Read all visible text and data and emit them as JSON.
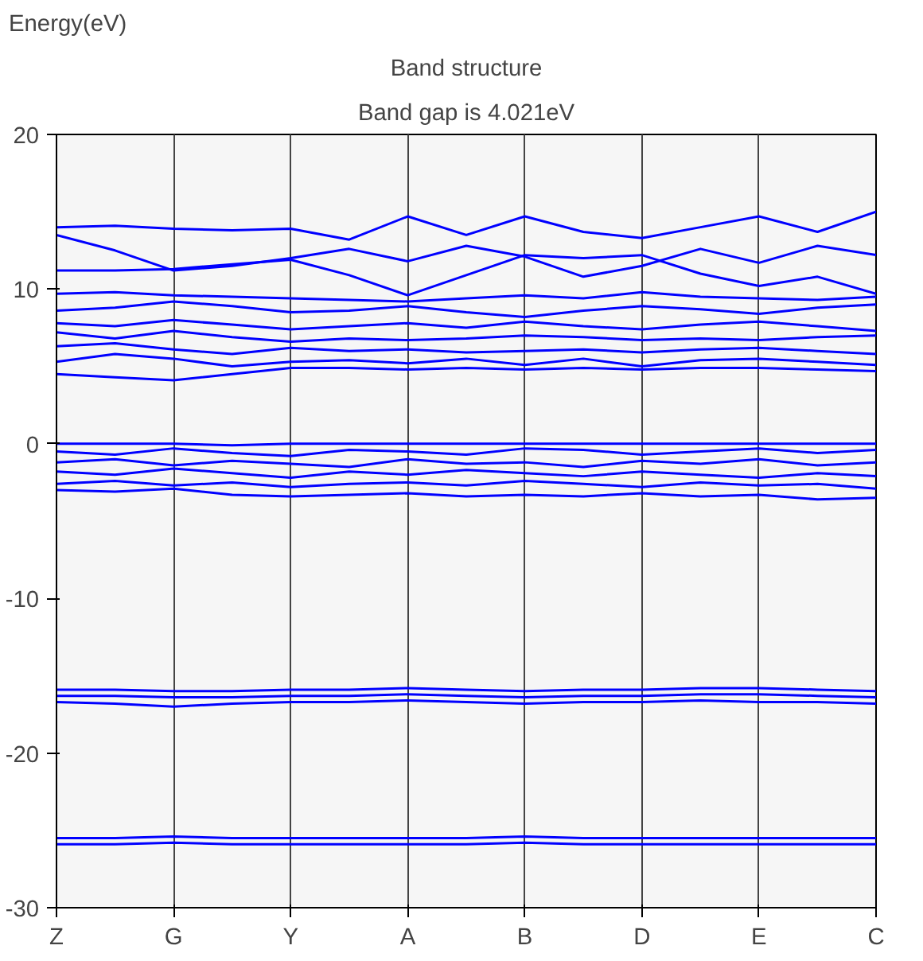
{
  "chart_data": {
    "type": "line",
    "title": "Band structure",
    "subtitle": "Band gap is 4.021eV",
    "ylabel": "Energy(eV)",
    "categories": [
      "Z",
      null,
      "G",
      null,
      "Y",
      null,
      "A",
      null,
      "B",
      null,
      "D",
      null,
      "E",
      null,
      "C"
    ],
    "ylim": [
      -30,
      20
    ],
    "yticks": [
      -30,
      -20,
      -10,
      0,
      10,
      20
    ],
    "grid": "x",
    "line_style": "solid",
    "series": [
      {
        "color": "#0000ff",
        "values": [
          14.0,
          14.1,
          13.9,
          13.8,
          13.9,
          13.2,
          14.7,
          13.5,
          14.7,
          13.7,
          13.3,
          14.0,
          14.7,
          13.7,
          15.0
        ]
      },
      {
        "color": "#0000ff",
        "values": [
          13.5,
          12.5,
          11.2,
          11.5,
          12.0,
          12.6,
          11.8,
          12.8,
          12.1,
          10.8,
          11.5,
          12.6,
          11.7,
          12.8,
          12.2
        ]
      },
      {
        "color": "#0000ff",
        "values": [
          11.2,
          11.2,
          11.3,
          11.6,
          11.9,
          10.9,
          9.6,
          10.9,
          12.2,
          12.0,
          12.2,
          11.0,
          10.2,
          10.8,
          9.7
        ]
      },
      {
        "color": "#0000ff",
        "values": [
          9.7,
          9.8,
          9.6,
          9.5,
          9.4,
          9.3,
          9.2,
          9.4,
          9.6,
          9.4,
          9.8,
          9.5,
          9.4,
          9.3,
          9.5
        ]
      },
      {
        "color": "#0000ff",
        "values": [
          8.6,
          8.8,
          9.2,
          8.9,
          8.5,
          8.6,
          8.9,
          8.5,
          8.2,
          8.6,
          8.9,
          8.7,
          8.4,
          8.8,
          9.0
        ]
      },
      {
        "color": "#0000ff",
        "values": [
          7.8,
          7.6,
          8.0,
          7.7,
          7.4,
          7.6,
          7.8,
          7.5,
          7.9,
          7.6,
          7.4,
          7.7,
          7.9,
          7.6,
          7.3
        ]
      },
      {
        "color": "#0000ff",
        "values": [
          7.2,
          6.8,
          7.3,
          6.9,
          6.6,
          6.8,
          6.7,
          6.8,
          7.0,
          6.9,
          6.7,
          6.8,
          6.7,
          6.9,
          7.0
        ]
      },
      {
        "color": "#0000ff",
        "values": [
          6.3,
          6.5,
          6.1,
          5.8,
          6.2,
          6.0,
          6.1,
          5.9,
          6.0,
          6.1,
          5.9,
          6.1,
          6.2,
          6.0,
          5.8
        ]
      },
      {
        "color": "#0000ff",
        "values": [
          5.3,
          5.8,
          5.5,
          5.0,
          5.3,
          5.4,
          5.2,
          5.5,
          5.1,
          5.5,
          5.0,
          5.4,
          5.5,
          5.3,
          5.1
        ]
      },
      {
        "color": "#0000ff",
        "values": [
          4.5,
          4.3,
          4.1,
          4.5,
          4.9,
          4.9,
          4.8,
          4.9,
          4.8,
          4.9,
          4.8,
          4.9,
          4.9,
          4.8,
          4.7
        ]
      },
      {
        "color": "#0000ff",
        "values": [
          0.0,
          0.0,
          0.0,
          -0.1,
          0.0,
          0.0,
          0.0,
          0.0,
          0.0,
          0.0,
          0.0,
          0.0,
          0.0,
          0.0,
          0.0
        ]
      },
      {
        "color": "#0000ff",
        "values": [
          -0.5,
          -0.7,
          -0.3,
          -0.6,
          -0.8,
          -0.4,
          -0.5,
          -0.7,
          -0.3,
          -0.4,
          -0.7,
          -0.5,
          -0.3,
          -0.6,
          -0.4
        ]
      },
      {
        "color": "#0000ff",
        "values": [
          -1.2,
          -1.0,
          -1.4,
          -1.1,
          -1.3,
          -1.5,
          -1.0,
          -1.3,
          -1.2,
          -1.5,
          -1.1,
          -1.3,
          -1.0,
          -1.4,
          -1.2
        ]
      },
      {
        "color": "#0000ff",
        "values": [
          -1.8,
          -2.0,
          -1.6,
          -1.9,
          -2.2,
          -1.8,
          -2.0,
          -1.7,
          -1.9,
          -2.1,
          -1.8,
          -2.0,
          -2.2,
          -1.9,
          -2.1
        ]
      },
      {
        "color": "#0000ff",
        "values": [
          -2.6,
          -2.4,
          -2.7,
          -2.5,
          -2.8,
          -2.6,
          -2.5,
          -2.7,
          -2.4,
          -2.6,
          -2.8,
          -2.5,
          -2.7,
          -2.6,
          -2.9
        ]
      },
      {
        "color": "#0000ff",
        "values": [
          -3.0,
          -3.1,
          -2.9,
          -3.3,
          -3.4,
          -3.3,
          -3.2,
          -3.4,
          -3.3,
          -3.4,
          -3.2,
          -3.4,
          -3.3,
          -3.6,
          -3.5
        ]
      },
      {
        "color": "#0000ff",
        "values": [
          -15.9,
          -15.9,
          -16.0,
          -16.0,
          -15.9,
          -15.9,
          -15.8,
          -15.9,
          -16.0,
          -15.9,
          -15.9,
          -15.8,
          -15.8,
          -15.9,
          -16.0
        ]
      },
      {
        "color": "#0000ff",
        "values": [
          -16.3,
          -16.3,
          -16.4,
          -16.4,
          -16.3,
          -16.3,
          -16.2,
          -16.3,
          -16.4,
          -16.3,
          -16.3,
          -16.2,
          -16.2,
          -16.3,
          -16.4
        ]
      },
      {
        "color": "#0000ff",
        "values": [
          -16.7,
          -16.8,
          -17.0,
          -16.8,
          -16.7,
          -16.7,
          -16.6,
          -16.7,
          -16.8,
          -16.7,
          -16.7,
          -16.6,
          -16.7,
          -16.7,
          -16.8
        ]
      },
      {
        "color": "#0000ff",
        "values": [
          -25.5,
          -25.5,
          -25.4,
          -25.5,
          -25.5,
          -25.5,
          -25.5,
          -25.5,
          -25.4,
          -25.5,
          -25.5,
          -25.5,
          -25.5,
          -25.5,
          -25.5
        ]
      },
      {
        "color": "#0000ff",
        "values": [
          -25.9,
          -25.9,
          -25.8,
          -25.9,
          -25.9,
          -25.9,
          -25.9,
          -25.9,
          -25.8,
          -25.9,
          -25.9,
          -25.9,
          -25.9,
          -25.9,
          -25.9
        ]
      }
    ]
  }
}
